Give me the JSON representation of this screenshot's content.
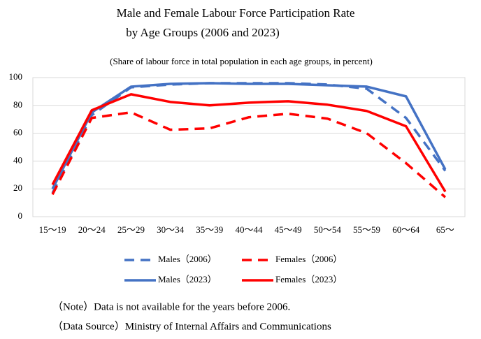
{
  "chart_data": {
    "type": "line",
    "title": [
      "Male and Female Labour Force Participation Rate",
      "by Age Groups (2006 and 2023)"
    ],
    "subtitle": "(Share of labour force in total population in each age groups, in percent)",
    "categories": [
      "15～19",
      "20～24",
      "25～29",
      "30～34",
      "35～39",
      "40～44",
      "45～49",
      "50～54",
      "55～59",
      "60～64",
      "65～"
    ],
    "series": [
      {
        "name": "Males（2006）",
        "color": "#4472c4",
        "dashed": true,
        "values": [
          17,
          73,
          93,
          95,
          96,
          96,
          96,
          95,
          92,
          71,
          33
        ]
      },
      {
        "name": "Females（2006）",
        "color": "#ff0000",
        "dashed": true,
        "values": [
          16,
          71,
          75,
          62.5,
          63.5,
          71.5,
          74,
          70.5,
          60,
          38.5,
          14
        ]
      },
      {
        "name": "Males（2023）",
        "color": "#4472c4",
        "dashed": false,
        "values": [
          20,
          75,
          93.5,
          95.5,
          96,
          95.5,
          95.5,
          94.5,
          93.5,
          86.5,
          34
        ]
      },
      {
        "name": "Females（2023）",
        "color": "#ff0000",
        "dashed": false,
        "values": [
          23,
          76.5,
          88,
          82.5,
          80,
          82,
          83,
          80.5,
          76,
          65,
          18
        ]
      }
    ],
    "ylim": [
      0,
      100
    ],
    "yticks": [
      0,
      20,
      40,
      60,
      80,
      100
    ],
    "grid": true,
    "notes": [
      "（Note）Data is not available for the years before 2006.",
      "（Data Source）Ministry of Internal Affairs and Communications"
    ]
  }
}
